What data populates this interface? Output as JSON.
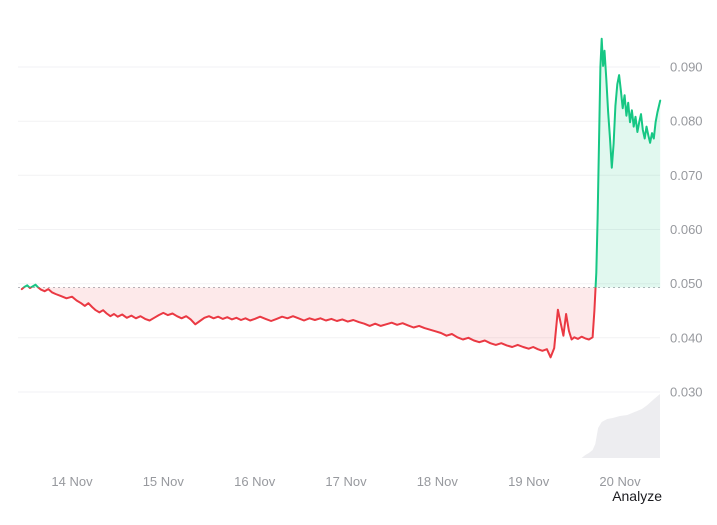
{
  "footer": {
    "analyze_label": "Analyze"
  },
  "chart_data": {
    "type": "line",
    "title": "",
    "xlabel": "",
    "ylabel": "",
    "grid": true,
    "legend": "none",
    "x_axis": {
      "range": [
        13.41,
        20.44
      ],
      "tick_values": [
        14,
        15,
        16,
        17,
        18,
        19,
        20
      ],
      "tick_labels": [
        "14 Nov",
        "15 Nov",
        "16 Nov",
        "17 Nov",
        "18 Nov",
        "19 Nov",
        "20 Nov"
      ]
    },
    "y_axis": {
      "range": [
        0.03,
        0.09
      ],
      "tick_values": [
        0.03,
        0.04,
        0.05,
        0.06,
        0.07,
        0.08,
        0.09
      ],
      "tick_labels": [
        "0.030",
        "0.040",
        "0.050",
        "0.060",
        "0.070",
        "0.080",
        "0.090"
      ]
    },
    "baseline_price": 0.0493,
    "series": [
      {
        "name": "price",
        "points": [
          [
            13.45,
            0.049
          ],
          [
            13.48,
            0.0494
          ],
          [
            13.51,
            0.0497
          ],
          [
            13.54,
            0.0492
          ],
          [
            13.57,
            0.0495
          ],
          [
            13.6,
            0.0498
          ],
          [
            13.63,
            0.0493
          ],
          [
            13.66,
            0.0489
          ],
          [
            13.7,
            0.0486
          ],
          [
            13.74,
            0.049
          ],
          [
            13.78,
            0.0484
          ],
          [
            13.82,
            0.0481
          ],
          [
            13.88,
            0.0477
          ],
          [
            13.94,
            0.0473
          ],
          [
            14.0,
            0.0476
          ],
          [
            14.05,
            0.0469
          ],
          [
            14.1,
            0.0464
          ],
          [
            14.14,
            0.0459
          ],
          [
            14.18,
            0.0464
          ],
          [
            14.22,
            0.0457
          ],
          [
            14.26,
            0.0451
          ],
          [
            14.3,
            0.0447
          ],
          [
            14.34,
            0.0451
          ],
          [
            14.38,
            0.0445
          ],
          [
            14.42,
            0.044
          ],
          [
            14.46,
            0.0444
          ],
          [
            14.5,
            0.0439
          ],
          [
            14.55,
            0.0443
          ],
          [
            14.6,
            0.0437
          ],
          [
            14.65,
            0.0441
          ],
          [
            14.7,
            0.0436
          ],
          [
            14.75,
            0.044
          ],
          [
            14.8,
            0.0435
          ],
          [
            14.85,
            0.0432
          ],
          [
            14.9,
            0.0437
          ],
          [
            14.95,
            0.0442
          ],
          [
            15.0,
            0.0446
          ],
          [
            15.05,
            0.0442
          ],
          [
            15.1,
            0.0445
          ],
          [
            15.15,
            0.044
          ],
          [
            15.2,
            0.0436
          ],
          [
            15.25,
            0.044
          ],
          [
            15.3,
            0.0434
          ],
          [
            15.35,
            0.0425
          ],
          [
            15.4,
            0.0431
          ],
          [
            15.45,
            0.0437
          ],
          [
            15.5,
            0.044
          ],
          [
            15.55,
            0.0436
          ],
          [
            15.6,
            0.0439
          ],
          [
            15.65,
            0.0435
          ],
          [
            15.7,
            0.0438
          ],
          [
            15.75,
            0.0434
          ],
          [
            15.8,
            0.0437
          ],
          [
            15.85,
            0.0433
          ],
          [
            15.9,
            0.0436
          ],
          [
            15.95,
            0.0432
          ],
          [
            16.0,
            0.0435
          ],
          [
            16.06,
            0.0439
          ],
          [
            16.12,
            0.0435
          ],
          [
            16.18,
            0.0431
          ],
          [
            16.24,
            0.0435
          ],
          [
            16.3,
            0.0439
          ],
          [
            16.36,
            0.0436
          ],
          [
            16.42,
            0.044
          ],
          [
            16.48,
            0.0436
          ],
          [
            16.54,
            0.0432
          ],
          [
            16.6,
            0.0436
          ],
          [
            16.66,
            0.0433
          ],
          [
            16.72,
            0.0436
          ],
          [
            16.78,
            0.0432
          ],
          [
            16.84,
            0.0435
          ],
          [
            16.9,
            0.0431
          ],
          [
            16.96,
            0.0434
          ],
          [
            17.02,
            0.043
          ],
          [
            17.08,
            0.0433
          ],
          [
            17.14,
            0.0429
          ],
          [
            17.2,
            0.0426
          ],
          [
            17.26,
            0.0422
          ],
          [
            17.32,
            0.0426
          ],
          [
            17.38,
            0.0422
          ],
          [
            17.44,
            0.0425
          ],
          [
            17.5,
            0.0428
          ],
          [
            17.56,
            0.0424
          ],
          [
            17.62,
            0.0427
          ],
          [
            17.68,
            0.0423
          ],
          [
            17.74,
            0.0419
          ],
          [
            17.8,
            0.0422
          ],
          [
            17.86,
            0.0418
          ],
          [
            17.92,
            0.0415
          ],
          [
            17.98,
            0.0412
          ],
          [
            18.04,
            0.0409
          ],
          [
            18.1,
            0.0404
          ],
          [
            18.16,
            0.0407
          ],
          [
            18.22,
            0.0401
          ],
          [
            18.28,
            0.0397
          ],
          [
            18.34,
            0.04
          ],
          [
            18.4,
            0.0395
          ],
          [
            18.46,
            0.0392
          ],
          [
            18.52,
            0.0395
          ],
          [
            18.58,
            0.039
          ],
          [
            18.64,
            0.0387
          ],
          [
            18.7,
            0.039
          ],
          [
            18.76,
            0.0386
          ],
          [
            18.82,
            0.0383
          ],
          [
            18.88,
            0.0387
          ],
          [
            18.94,
            0.0383
          ],
          [
            19.0,
            0.038
          ],
          [
            19.05,
            0.0383
          ],
          [
            19.1,
            0.0379
          ],
          [
            19.15,
            0.0376
          ],
          [
            19.2,
            0.0379
          ],
          [
            19.24,
            0.0364
          ],
          [
            19.28,
            0.0381
          ],
          [
            19.32,
            0.0452
          ],
          [
            19.35,
            0.0428
          ],
          [
            19.38,
            0.0404
          ],
          [
            19.41,
            0.0444
          ],
          [
            19.44,
            0.0413
          ],
          [
            19.47,
            0.0397
          ],
          [
            19.5,
            0.0401
          ],
          [
            19.54,
            0.0398
          ],
          [
            19.58,
            0.0402
          ],
          [
            19.62,
            0.0399
          ],
          [
            19.66,
            0.0397
          ],
          [
            19.7,
            0.0401
          ],
          [
            19.72,
            0.045
          ],
          [
            19.74,
            0.052
          ],
          [
            19.755,
            0.062
          ],
          [
            19.77,
            0.076
          ],
          [
            19.785,
            0.09
          ],
          [
            19.8,
            0.0952
          ],
          [
            19.815,
            0.0902
          ],
          [
            19.83,
            0.093
          ],
          [
            19.85,
            0.0878
          ],
          [
            19.87,
            0.0818
          ],
          [
            19.89,
            0.0768
          ],
          [
            19.91,
            0.0714
          ],
          [
            19.93,
            0.0758
          ],
          [
            19.95,
            0.0828
          ],
          [
            19.97,
            0.0868
          ],
          [
            19.99,
            0.0885
          ],
          [
            20.01,
            0.0856
          ],
          [
            20.03,
            0.0824
          ],
          [
            20.05,
            0.0848
          ],
          [
            20.07,
            0.081
          ],
          [
            20.09,
            0.0834
          ],
          [
            20.11,
            0.0798
          ],
          [
            20.13,
            0.082
          ],
          [
            20.15,
            0.079
          ],
          [
            20.17,
            0.0808
          ],
          [
            20.19,
            0.078
          ],
          [
            20.21,
            0.0798
          ],
          [
            20.23,
            0.0813
          ],
          [
            20.25,
            0.0784
          ],
          [
            20.27,
            0.0768
          ],
          [
            20.29,
            0.079
          ],
          [
            20.31,
            0.0774
          ],
          [
            20.33,
            0.076
          ],
          [
            20.35,
            0.0778
          ],
          [
            20.37,
            0.0768
          ],
          [
            20.39,
            0.0798
          ],
          [
            20.41,
            0.0816
          ],
          [
            20.44,
            0.0838
          ]
        ]
      }
    ],
    "volume_profile": {
      "points": [
        [
          19.58,
          0
        ],
        [
          19.62,
          3
        ],
        [
          19.66,
          5
        ],
        [
          19.7,
          8
        ],
        [
          19.73,
          14
        ],
        [
          19.76,
          30
        ],
        [
          19.8,
          36
        ],
        [
          19.86,
          39
        ],
        [
          19.92,
          40
        ],
        [
          20.0,
          42
        ],
        [
          20.08,
          43
        ],
        [
          20.16,
          46
        ],
        [
          20.24,
          49
        ],
        [
          20.3,
          53
        ],
        [
          20.36,
          58
        ],
        [
          20.44,
          64
        ]
      ]
    },
    "colors": {
      "up": "#16c784",
      "up_fill": "rgba(22,199,132,0.13)",
      "down": "#ea3943",
      "down_fill": "rgba(234,57,67,0.11)",
      "grid": "#f2f2f4",
      "baseline": "#b5b7bc",
      "axis_text": "#97999e",
      "volume_fill": "#ededf0"
    }
  }
}
